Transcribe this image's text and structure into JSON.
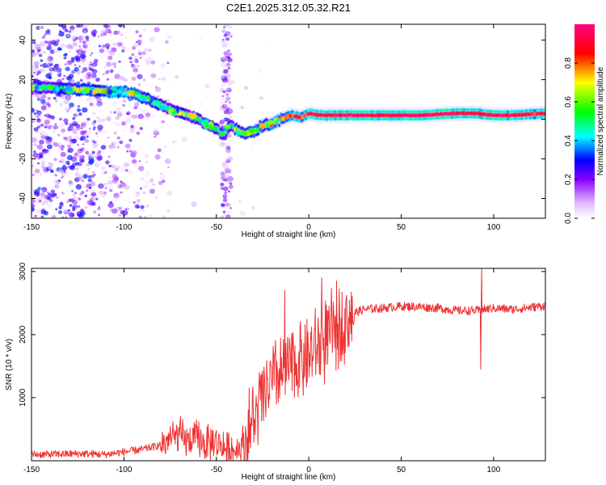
{
  "title": "C2E1.2025.312.05.32.R21",
  "chart_data": [
    {
      "type": "heatmap",
      "xlabel": "Height of straight line (km)",
      "ylabel": "Frequency (Hz)",
      "xlim": [
        -150,
        128
      ],
      "ylim": [
        -50,
        48
      ],
      "xticks": [
        -150,
        -100,
        -50,
        0,
        50,
        100
      ],
      "xtick_labels": [
        "-150",
        "-100",
        "-50",
        "0",
        "50",
        "100"
      ],
      "yticks": [
        -40,
        -20,
        0,
        20,
        40
      ],
      "ytick_labels": [
        "-40",
        "-20",
        "0",
        "20",
        "40"
      ],
      "colorbar": {
        "label": "Normalized spectral amplitude",
        "range": [
          0,
          1
        ],
        "ticks": [
          0,
          0.2,
          0.4,
          0.6,
          0.8
        ],
        "tick_labels": [
          "0.0",
          "0.2",
          "0.4",
          "0.6",
          "0.8"
        ],
        "colormap": [
          "#ffffff",
          "#8800ff",
          "#0000ff",
          "#00ffff",
          "#00ff00",
          "#ffff00",
          "#ff0000",
          "#ff0080"
        ]
      },
      "ridge": {
        "x": [
          -150,
          -140,
          -130,
          -120,
          -110,
          -100,
          -95,
          -90,
          -85,
          -80,
          -75,
          -70,
          -65,
          -60,
          -55,
          -50,
          -47,
          -43,
          -40,
          -35,
          -30,
          -25,
          -20,
          -15,
          -10,
          -5,
          0,
          5,
          10,
          20,
          40,
          60,
          80,
          90,
          100,
          110,
          128
        ],
        "y": [
          16,
          16,
          15,
          15,
          14,
          14,
          13,
          11,
          9,
          7,
          5,
          3,
          2,
          0,
          -3,
          -5,
          -8,
          -3,
          -5,
          -7,
          -6,
          -3,
          -2,
          0,
          2,
          1,
          3,
          2,
          2,
          2,
          2,
          2,
          3,
          3,
          2,
          2,
          3
        ],
        "intensity": [
          0.5,
          0.55,
          0.6,
          0.7,
          0.75,
          0.8,
          0.7,
          0.65,
          0.6,
          0.55,
          0.5,
          0.55,
          0.55,
          0.6,
          0.6,
          0.55,
          0.5,
          0.55,
          0.6,
          0.65,
          0.7,
          0.7,
          0.75,
          0.8,
          0.85,
          0.85,
          0.9,
          0.9,
          0.95,
          0.95,
          0.98,
          0.98,
          0.95,
          0.95,
          0.95,
          0.9,
          0.9
        ]
      }
    },
    {
      "type": "line",
      "xlabel": "Height of straight line (km)",
      "ylabel": "SNR (10 * v/v)",
      "xlim": [
        -150,
        128
      ],
      "ylim": [
        0,
        3050
      ],
      "xticks": [
        -150,
        -100,
        -50,
        0,
        50,
        100
      ],
      "xtick_labels": [
        "-150",
        "-100",
        "-50",
        "0",
        "50",
        "100"
      ],
      "yticks": [
        1000,
        2000,
        3000
      ],
      "ytick_labels": [
        "1000",
        "2000",
        "3000"
      ],
      "series": [
        {
          "name": "SNR",
          "color": "#ee3333",
          "x": [
            -150,
            -140,
            -130,
            -120,
            -110,
            -100,
            -90,
            -80,
            -75,
            -70,
            -65,
            -60,
            -55,
            -50,
            -45,
            -40,
            -35,
            -30,
            -25,
            -20,
            -15,
            -10,
            -5,
            0,
            5,
            10,
            15,
            20,
            25,
            30,
            40,
            50,
            60,
            70,
            80,
            90,
            93,
            95,
            100,
            110,
            120,
            128
          ],
          "y": [
            100,
            100,
            110,
            110,
            100,
            140,
            180,
            250,
            350,
            400,
            300,
            350,
            250,
            300,
            200,
            150,
            300,
            600,
            1000,
            1250,
            1350,
            1500,
            1600,
            1650,
            1800,
            1950,
            2100,
            2250,
            2350,
            2400,
            2420,
            2450,
            2440,
            2420,
            2380,
            2380,
            2380,
            2400,
            2420,
            2400,
            2430,
            2460
          ],
          "spikes": [
            {
              "x": -13,
              "y": 2700
            },
            {
              "x": 7,
              "y": 2900
            },
            {
              "x": 93,
              "y": 1450
            },
            {
              "x": 93.5,
              "y": 3050
            }
          ]
        }
      ]
    }
  ]
}
